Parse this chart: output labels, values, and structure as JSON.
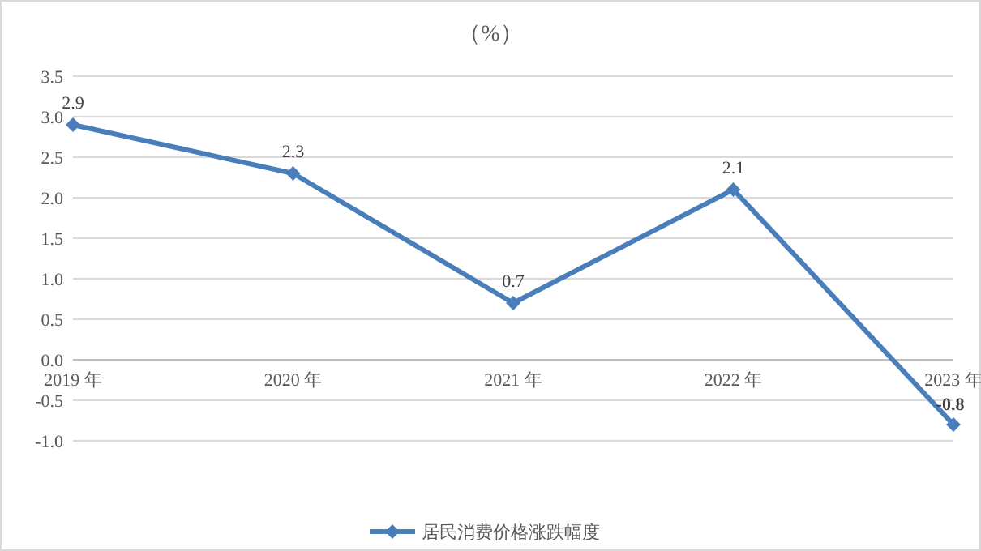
{
  "chart_data": {
    "type": "line",
    "title": "（%）",
    "categories": [
      "2019 年",
      "2020 年",
      "2021 年",
      "2022 年",
      "2023 年"
    ],
    "series": [
      {
        "name": "居民消费价格涨跌幅度",
        "color": "#4a7ebb",
        "values": [
          2.9,
          2.3,
          0.7,
          2.1,
          -0.8
        ]
      }
    ],
    "ylim": [
      -1,
      3.5
    ],
    "yticks": [
      {
        "value": -1,
        "label": "-1.0"
      },
      {
        "value": -0.5,
        "label": "-0.5"
      },
      {
        "value": 0,
        "label": "0.0"
      },
      {
        "value": 0.5,
        "label": "0.5"
      },
      {
        "value": 1,
        "label": "1.0"
      },
      {
        "value": 1.5,
        "label": "1.5"
      },
      {
        "value": 2,
        "label": "2.0"
      },
      {
        "value": 2.5,
        "label": "2.5"
      },
      {
        "value": 3,
        "label": "3.0"
      },
      {
        "value": 3.5,
        "label": "3.5"
      }
    ],
    "grid": "y",
    "legend": "bottom",
    "marker": "diamond",
    "line_style": "solid",
    "data_labels": true
  }
}
